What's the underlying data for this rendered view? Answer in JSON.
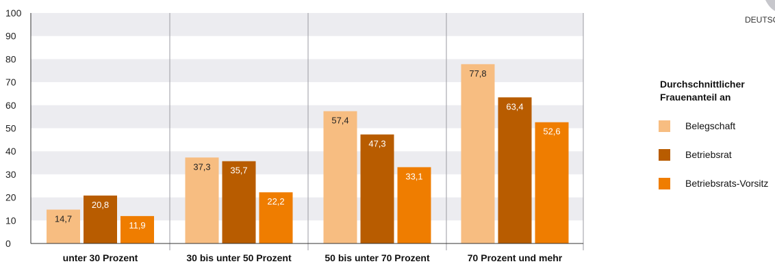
{
  "corner_text": "DEUTSC",
  "colors": {
    "belegschaft": "#f7bd81",
    "betriebsrat": "#b85c00",
    "vorsitz": "#ef7d00",
    "band": "#ececf0",
    "divider": "#9a9aa0"
  },
  "chart_data": {
    "type": "bar",
    "categories": [
      "unter 30 Prozent",
      "30 bis unter 50 Prozent",
      "50 bis unter 70 Prozent",
      "70 Prozent und mehr"
    ],
    "series": [
      {
        "name": "Belegschaft",
        "values": [
          14.7,
          37.3,
          57.4,
          77.8
        ],
        "labels": [
          "14,7",
          "37,3",
          "57,4",
          "77,8"
        ]
      },
      {
        "name": "Betriebsrat",
        "values": [
          20.8,
          35.7,
          47.3,
          63.4
        ],
        "labels": [
          "20,8",
          "35,7",
          "47,3",
          "63,4"
        ]
      },
      {
        "name": "Betriebsrats-Vorsitz",
        "values": [
          11.9,
          22.2,
          33.1,
          52.6
        ],
        "labels": [
          "11,9",
          "22,2",
          "33,1",
          "52,6"
        ]
      }
    ],
    "ylim": [
      0,
      100
    ],
    "yticks": [
      0,
      10,
      20,
      30,
      40,
      50,
      60,
      70,
      80,
      90,
      100
    ],
    "legend": {
      "title_line1": "Durchschnittlicher",
      "title_line2": "Frauenanteil an",
      "placement": "right"
    }
  }
}
